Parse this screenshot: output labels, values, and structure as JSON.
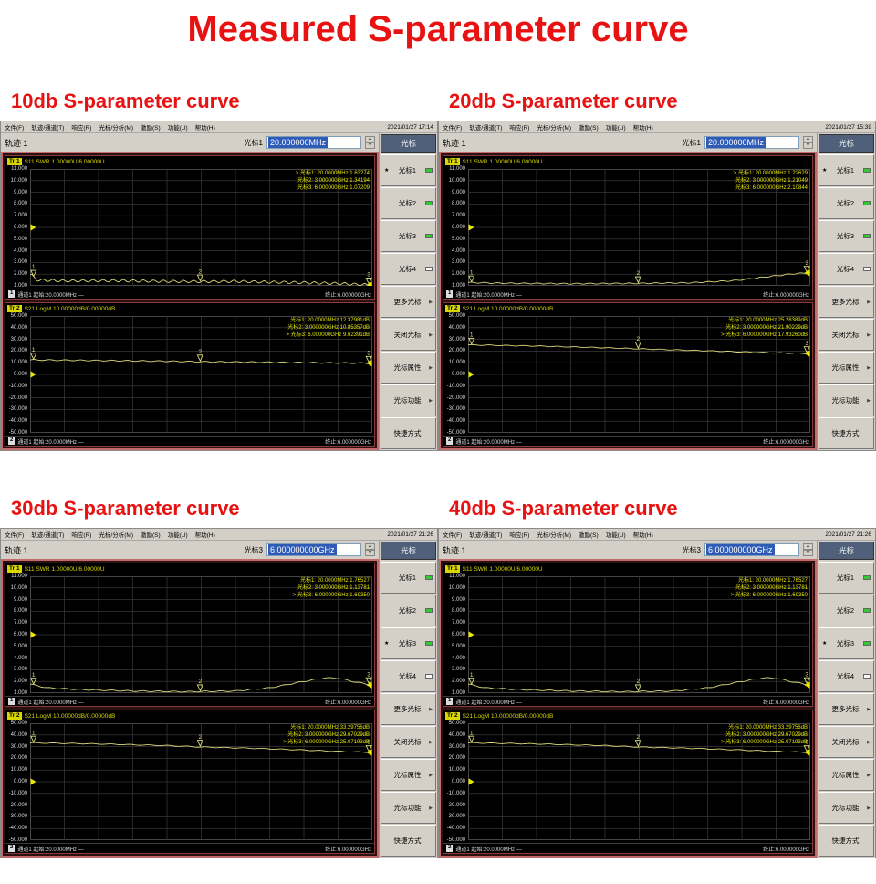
{
  "title": "Measured S-parameter curve",
  "accent_color": "#e81212",
  "menu_items": [
    "文件(F)",
    "轨迹/通道(T)",
    "响应(R)",
    "光标/分析(M)",
    "激励(S)",
    "功能(U)",
    "帮助(H)"
  ],
  "axes": {
    "swr": [
      "11.000",
      "10.000",
      "9.000",
      "8.000",
      "7.000",
      "6.000",
      "5.000",
      "4.000",
      "3.000",
      "2.000",
      "1.000"
    ],
    "logm": [
      "50.000",
      "40.000",
      "30.000",
      "20.000",
      "10.000",
      "0.000",
      "-10.000",
      "-20.000",
      "-30.000",
      "-40.000",
      "-50.000"
    ]
  },
  "panels": [
    {
      "subtitle": "10db S-parameter curve",
      "datetime": "2021/01/27 17:14",
      "trace_selector": "轨迹 1",
      "marker_label": "光标1",
      "marker_value": "20.000000MHz",
      "sidebar_header": "光标",
      "sidebar_buttons": [
        {
          "id": "marker1",
          "label": "光标1",
          "star": true,
          "led": "on"
        },
        {
          "id": "marker2",
          "label": "光标2",
          "led": "on"
        },
        {
          "id": "marker3",
          "label": "光标3",
          "led": "on"
        },
        {
          "id": "marker4",
          "label": "光标4",
          "led": "off"
        },
        {
          "id": "more-markers",
          "label": "更多光标",
          "arrow": true
        },
        {
          "id": "close-markers",
          "label": "关闭光标",
          "arrow": true
        },
        {
          "id": "marker-properties",
          "label": "光标属性",
          "arrow": true
        },
        {
          "id": "marker-functions",
          "label": "光标功能",
          "arrow": true
        },
        {
          "id": "shortcuts",
          "label": "快捷方式"
        }
      ],
      "plots": [
        {
          "badge": "Tr 1",
          "title": "S11 SWR 1.00000U/6.00000U",
          "axis": "swr",
          "ymax": 11,
          "ymin": 1,
          "ref": 6,
          "readout": [
            "> 光标1: 20.0000MHz  1.63274",
            "光标2: 3.000000GHz  1.34194",
            "光标3: 6.000000GHz  1.07209"
          ],
          "status_badge": "1",
          "status_left": "通道1  起始:20.0000MHz  —",
          "status_right": "终止:6.000000GHz",
          "trace": {
            "points": [
              [
                0,
                2.0
              ],
              [
                0.02,
                1.5
              ],
              [
                0.1,
                1.42
              ],
              [
                0.25,
                1.44
              ],
              [
                0.4,
                1.38
              ],
              [
                0.5,
                1.36
              ],
              [
                0.6,
                1.38
              ],
              [
                0.7,
                1.32
              ],
              [
                0.8,
                1.27
              ],
              [
                0.9,
                1.2
              ],
              [
                0.96,
                1.12
              ],
              [
                1,
                1.07
              ]
            ],
            "ripple_amp": 0.1,
            "ripple_freq": 34,
            "markers": [
              {
                "x": 0.01,
                "label": "1"
              },
              {
                "x": 0.497,
                "label": "2"
              },
              {
                "x": 0.99,
                "label": "3"
              }
            ]
          }
        },
        {
          "badge": "Tr 2",
          "title": "S21 LogM 10.00000dB/0.00000dB",
          "axis": "logm",
          "ymax": 50,
          "ymin": -50,
          "ref": 0,
          "readout": [
            "光标1: 20.0000MHz  12.37981dB",
            "光标2: 3.000000GHz  10.85357dB",
            "> 光标3: 6.000000GHz  9.62391dB"
          ],
          "status_badge": "2",
          "status_left": "通道1  起始:20.0000MHz  —",
          "status_right": "终止:6.000000GHz",
          "trace": {
            "points": [
              [
                0,
                12.4
              ],
              [
                0.2,
                11.9
              ],
              [
                0.4,
                11.3
              ],
              [
                0.5,
                10.85
              ],
              [
                0.7,
                10.4
              ],
              [
                0.9,
                9.8
              ],
              [
                1,
                9.62
              ]
            ],
            "ripple_amp": 0.4,
            "ripple_freq": 22,
            "markers": [
              {
                "x": 0.01,
                "label": "1"
              },
              {
                "x": 0.497,
                "label": "2"
              },
              {
                "x": 0.99,
                "label": "3"
              }
            ]
          }
        }
      ]
    },
    {
      "subtitle": "20db S-parameter curve",
      "datetime": "2021/01/27 15:39",
      "trace_selector": "轨迹 1",
      "marker_label": "光标1",
      "marker_value": "20.000000MHz",
      "sidebar_header": "光标",
      "sidebar_buttons": [
        {
          "id": "marker1",
          "label": "光标1",
          "star": true,
          "led": "on"
        },
        {
          "id": "marker2",
          "label": "光标2",
          "led": "on"
        },
        {
          "id": "marker3",
          "label": "光标3",
          "led": "on"
        },
        {
          "id": "marker4",
          "label": "光标4",
          "led": "off"
        },
        {
          "id": "more-markers",
          "label": "更多光标",
          "arrow": true
        },
        {
          "id": "close-markers",
          "label": "关闭光标",
          "arrow": true
        },
        {
          "id": "marker-properties",
          "label": "光标属性",
          "arrow": true
        },
        {
          "id": "marker-functions",
          "label": "光标功能",
          "arrow": true
        },
        {
          "id": "shortcuts",
          "label": "快捷方式"
        }
      ],
      "plots": [
        {
          "badge": "Tr 1",
          "title": "S11 SWR 1.00000U/6.00000U",
          "axis": "swr",
          "ymax": 11,
          "ymin": 1,
          "ref": 6,
          "readout": [
            "> 光标1: 20.0000MHz  1.22629",
            "光标2: 3.000000GHz  1.21049",
            "光标3: 6.000000GHz  2.10844"
          ],
          "status_badge": "1",
          "status_left": "通道1  起始:20.0000MHz  —",
          "status_right": "终止:6.000000GHz",
          "trace": {
            "points": [
              [
                0,
                1.28
              ],
              [
                0.1,
                1.22
              ],
              [
                0.3,
                1.18
              ],
              [
                0.5,
                1.21
              ],
              [
                0.65,
                1.26
              ],
              [
                0.78,
                1.45
              ],
              [
                0.88,
                1.8
              ],
              [
                0.95,
                2.03
              ],
              [
                1,
                2.11
              ]
            ],
            "ripple_amp": 0.04,
            "ripple_freq": 26,
            "markers": [
              {
                "x": 0.01,
                "label": "1"
              },
              {
                "x": 0.497,
                "label": "2"
              },
              {
                "x": 0.99,
                "label": "3"
              }
            ]
          }
        },
        {
          "badge": "Tr 2",
          "title": "S21 LogM 10.00000dB/0.00000dB",
          "axis": "logm",
          "ymax": 50,
          "ymin": -50,
          "ref": 0,
          "readout": [
            "光标1: 20.0000MHz  25.28389dB",
            "光标2: 3.000000GHz  21.90229dB",
            "> 光标3: 6.000000GHz  17.93260dB"
          ],
          "status_badge": "2",
          "status_left": "通道1  起始:20.0000MHz  —",
          "status_right": "终止:6.000000GHz",
          "trace": {
            "points": [
              [
                0,
                25.28
              ],
              [
                0.2,
                24.3
              ],
              [
                0.4,
                22.8
              ],
              [
                0.5,
                21.9
              ],
              [
                0.7,
                20.2
              ],
              [
                0.9,
                18.4
              ],
              [
                1,
                17.93
              ]
            ],
            "ripple_amp": 0.3,
            "ripple_freq": 20,
            "markers": [
              {
                "x": 0.01,
                "label": "1"
              },
              {
                "x": 0.497,
                "label": "2"
              },
              {
                "x": 0.99,
                "label": "3"
              }
            ]
          }
        }
      ]
    },
    {
      "subtitle": "30db S-parameter curve",
      "datetime": "2021/01/27 21:26",
      "trace_selector": "轨迹 1",
      "marker_label": "光标3",
      "marker_value": "6.000000000GHz",
      "sidebar_header": "光标",
      "sidebar_buttons": [
        {
          "id": "marker1",
          "label": "光标1",
          "led": "on"
        },
        {
          "id": "marker2",
          "label": "光标2",
          "led": "on"
        },
        {
          "id": "marker3",
          "label": "光标3",
          "star": true,
          "led": "on"
        },
        {
          "id": "marker4",
          "label": "光标4",
          "led": "off"
        },
        {
          "id": "more-markers",
          "label": "更多光标",
          "arrow": true
        },
        {
          "id": "close-markers",
          "label": "关闭光标",
          "arrow": true
        },
        {
          "id": "marker-properties",
          "label": "光标属性",
          "arrow": true
        },
        {
          "id": "marker-functions",
          "label": "光标功能",
          "arrow": true
        },
        {
          "id": "shortcuts",
          "label": "快捷方式"
        }
      ],
      "plots": [
        {
          "badge": "Tr 1",
          "title": "S11 SWR 1.00000U/6.00000U",
          "axis": "swr",
          "ymax": 11,
          "ymin": 1,
          "ref": 6,
          "readout": [
            "光标1: 20.0000MHz  1.76527",
            "光标2: 3.000000GHz  1.13781",
            "> 光标3: 6.000000GHz  1.69350"
          ],
          "status_badge": "1",
          "status_left": "通道1  起始:20.0000MHz  —",
          "status_right": "终止:6.000000GHz",
          "trace": {
            "points": [
              [
                0,
                1.77
              ],
              [
                0.05,
                1.45
              ],
              [
                0.15,
                1.3
              ],
              [
                0.3,
                1.18
              ],
              [
                0.45,
                1.12
              ],
              [
                0.6,
                1.18
              ],
              [
                0.7,
                1.45
              ],
              [
                0.8,
                2.0
              ],
              [
                0.86,
                2.3
              ],
              [
                0.9,
                2.28
              ],
              [
                0.95,
                1.95
              ],
              [
                1,
                1.69
              ]
            ],
            "ripple_amp": 0.04,
            "ripple_freq": 22,
            "markers": [
              {
                "x": 0.01,
                "label": "1"
              },
              {
                "x": 0.497,
                "label": "2"
              },
              {
                "x": 0.99,
                "label": "3"
              }
            ]
          }
        },
        {
          "badge": "Tr 2",
          "title": "S21 LogM 10.00000dB/0.00000dB",
          "axis": "logm",
          "ymax": 50,
          "ymin": -50,
          "ref": 0,
          "readout": [
            "光标1: 20.0000MHz  33.29756dB",
            "光标2: 3.000000GHz  29.67029dB",
            "> 光标3: 6.000000GHz  25.07193dB"
          ],
          "status_badge": "2",
          "status_left": "通道1  起始:20.0000MHz  —",
          "status_right": "终止:6.000000GHz",
          "trace": {
            "points": [
              [
                0,
                33.3
              ],
              [
                0.2,
                32.3
              ],
              [
                0.4,
                30.9
              ],
              [
                0.5,
                29.67
              ],
              [
                0.65,
                28.6
              ],
              [
                0.8,
                27.1
              ],
              [
                0.9,
                25.9
              ],
              [
                1,
                25.07
              ]
            ],
            "ripple_amp": 0.3,
            "ripple_freq": 18,
            "markers": [
              {
                "x": 0.01,
                "label": "1"
              },
              {
                "x": 0.497,
                "label": "2"
              },
              {
                "x": 0.99,
                "label": "3"
              }
            ]
          }
        }
      ]
    },
    {
      "subtitle": "40db S-parameter curve",
      "datetime": "2021/01/27 21:26",
      "trace_selector": "轨迹 1",
      "marker_label": "光标3",
      "marker_value": "6.000000000GHz",
      "sidebar_header": "光标",
      "sidebar_buttons": [
        {
          "id": "marker1",
          "label": "光标1",
          "led": "on"
        },
        {
          "id": "marker2",
          "label": "光标2",
          "led": "on"
        },
        {
          "id": "marker3",
          "label": "光标3",
          "star": true,
          "led": "on"
        },
        {
          "id": "marker4",
          "label": "光标4",
          "led": "off"
        },
        {
          "id": "more-markers",
          "label": "更多光标",
          "arrow": true
        },
        {
          "id": "close-markers",
          "label": "关闭光标",
          "arrow": true
        },
        {
          "id": "marker-properties",
          "label": "光标属性",
          "arrow": true
        },
        {
          "id": "marker-functions",
          "label": "光标功能",
          "arrow": true
        },
        {
          "id": "shortcuts",
          "label": "快捷方式"
        }
      ],
      "plots": [
        {
          "badge": "Tr 1",
          "title": "S11 SWR 1.00000U/6.00000U",
          "axis": "swr",
          "ymax": 11,
          "ymin": 1,
          "ref": 6,
          "readout": [
            "光标1: 20.0000MHz  1.76527",
            "光标2: 3.000000GHz  1.13781",
            "> 光标3: 6.000000GHz  1.69350"
          ],
          "status_badge": "1",
          "status_left": "通道1  起始:20.0000MHz  —",
          "status_right": "终止:6.000000GHz",
          "trace": {
            "points": [
              [
                0,
                1.77
              ],
              [
                0.05,
                1.45
              ],
              [
                0.15,
                1.3
              ],
              [
                0.3,
                1.18
              ],
              [
                0.45,
                1.12
              ],
              [
                0.6,
                1.18
              ],
              [
                0.7,
                1.45
              ],
              [
                0.8,
                2.0
              ],
              [
                0.86,
                2.3
              ],
              [
                0.9,
                2.28
              ],
              [
                0.95,
                1.95
              ],
              [
                1,
                1.69
              ]
            ],
            "ripple_amp": 0.04,
            "ripple_freq": 22,
            "markers": [
              {
                "x": 0.01,
                "label": "1"
              },
              {
                "x": 0.497,
                "label": "2"
              },
              {
                "x": 0.99,
                "label": "3"
              }
            ]
          }
        },
        {
          "badge": "Tr 2",
          "title": "S21 LogM 10.00000dB/0.00000dB",
          "axis": "logm",
          "ymax": 50,
          "ymin": -50,
          "ref": 0,
          "readout": [
            "光标1: 20.0000MHz  33.29756dB",
            "光标2: 3.000000GHz  29.67029dB",
            "> 光标3: 6.000000GHz  25.07193dB"
          ],
          "status_badge": "2",
          "status_left": "通道1  起始:20.0000MHz  —",
          "status_right": "终止:6.000000GHz",
          "trace": {
            "points": [
              [
                0,
                33.3
              ],
              [
                0.2,
                32.3
              ],
              [
                0.4,
                30.9
              ],
              [
                0.5,
                29.67
              ],
              [
                0.65,
                28.6
              ],
              [
                0.8,
                27.1
              ],
              [
                0.9,
                25.9
              ],
              [
                1,
                25.07
              ]
            ],
            "ripple_amp": 0.3,
            "ripple_freq": 18,
            "markers": [
              {
                "x": 0.01,
                "label": "1"
              },
              {
                "x": 0.497,
                "label": "2"
              },
              {
                "x": 0.99,
                "label": "3"
              }
            ]
          }
        }
      ]
    }
  ]
}
